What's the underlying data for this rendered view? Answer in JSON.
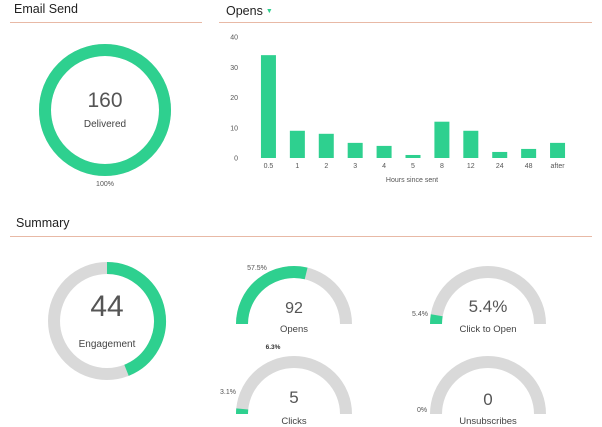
{
  "colors": {
    "accent": "#2ed08f",
    "track": "#d9d9d9",
    "rule": "#e8b9a6"
  },
  "email_send": {
    "title": "Email Send",
    "delivered": {
      "value": "160",
      "label": "Delivered",
      "percent_label": "100%",
      "fraction": 1.0
    }
  },
  "opens": {
    "title": "Opens",
    "dropdown_icon": "caret-down-icon",
    "chart_data": {
      "type": "bar",
      "title": "",
      "xlabel": "Hours since sent",
      "ylabel": "",
      "categories": [
        "0.5",
        "1",
        "2",
        "3",
        "4",
        "5",
        "8",
        "12",
        "24",
        "48",
        "after"
      ],
      "values": [
        34,
        9,
        8,
        5,
        4,
        1,
        12,
        9,
        2,
        3,
        5
      ],
      "yticks": [
        "0",
        "10",
        "20",
        "30",
        "40"
      ],
      "ylim": [
        0,
        40
      ],
      "grid": false,
      "legend": "none"
    }
  },
  "summary": {
    "title": "Summary",
    "engagement": {
      "value": "44",
      "label": "Engagement",
      "fraction": 0.44
    },
    "opens": {
      "value": "92",
      "label": "Opens",
      "percent_label": "57.5%",
      "fraction": 0.575
    },
    "click_to_open": {
      "value": "5.4%",
      "label": "Click to Open",
      "percent_label": "5.4%",
      "fraction": 0.054
    },
    "clicks": {
      "value": "5",
      "label": "Clicks",
      "percent_label": "3.1%",
      "secondary_percent_label": "6.3%",
      "fraction": 0.031,
      "secondary_fraction": 0.063
    },
    "unsubscribes": {
      "value": "0",
      "label": "Unsubscribes",
      "percent_label": "0%",
      "fraction": 0.0
    }
  }
}
